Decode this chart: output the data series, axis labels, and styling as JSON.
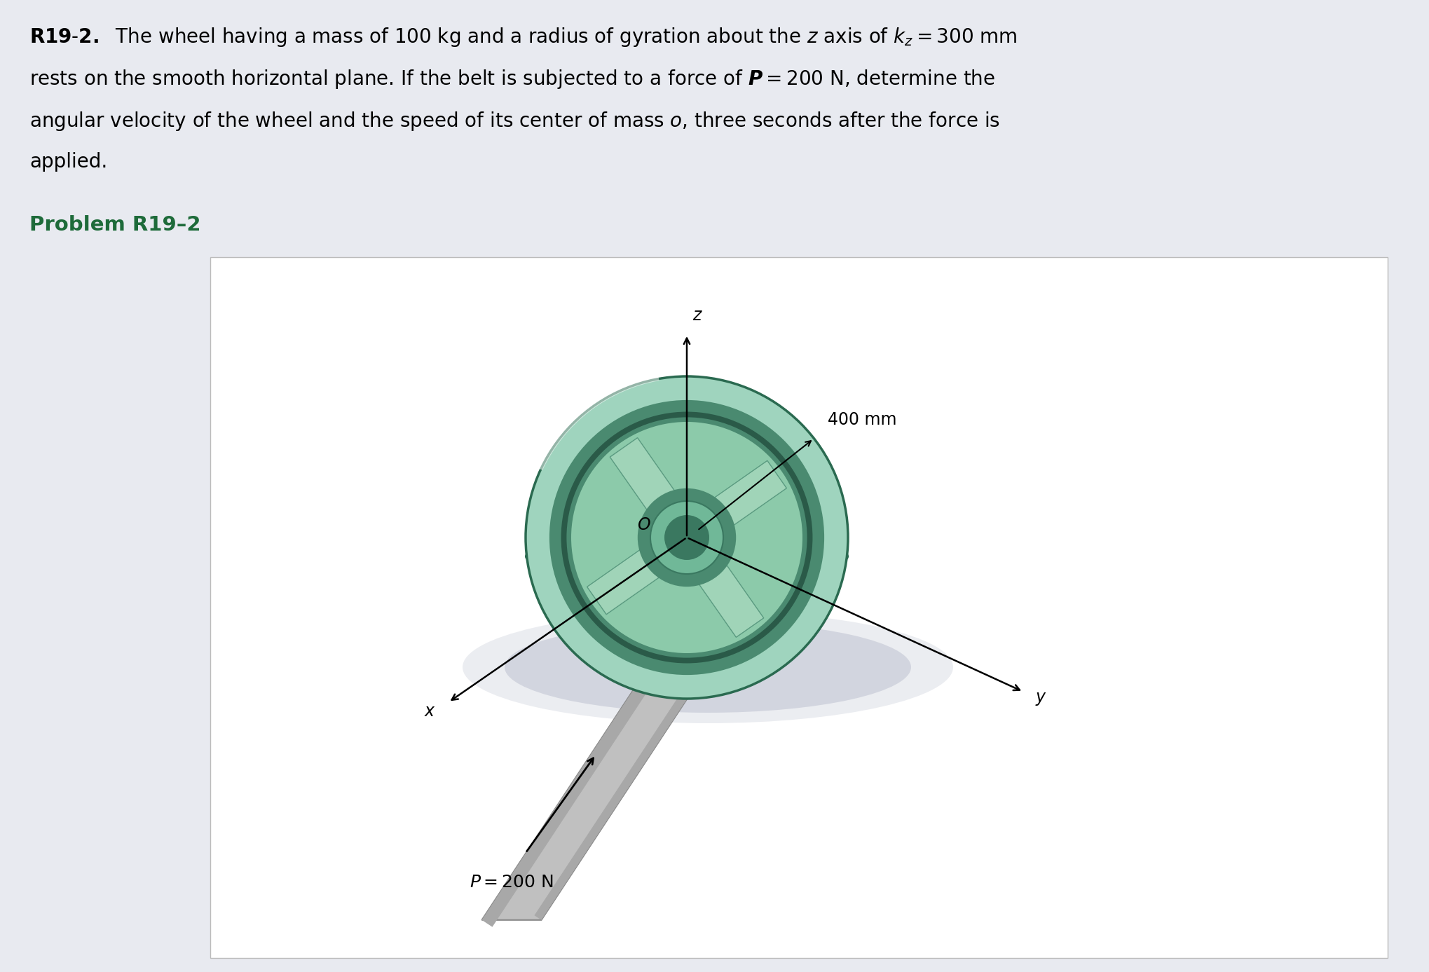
{
  "fig_bg": "#e8eaf0",
  "panel_bg": "#e8eaf0",
  "diagram_bg": "#ffffff",
  "text_color": "#000000",
  "subtitle_color": "#1e6b3a",
  "wheel_rim_outer": "#7dbfaa",
  "wheel_rim_light": "#9fd4be",
  "wheel_rim_dark": "#4a8a70",
  "wheel_rim_edge": "#2a6a50",
  "wheel_face_bg": "#8ccaaa",
  "wheel_spoke_light": "#a0d4b8",
  "wheel_spoke_dark": "#5a9a80",
  "wheel_hub_light": "#70b898",
  "wheel_hub_dark": "#3a7860",
  "wheel_side_color": "#3a7860",
  "wheel_groove": "#2a5a48",
  "belt_light": "#c0c0c0",
  "belt_mid": "#a8a8a8",
  "belt_dark": "#888888",
  "shadow_color": "#c8ccd8",
  "arrow_color": "#000000",
  "line1": "R19–2.  The wheel having a mass of 100 kg and a radius of gyration about the $z$ axis of $k_z = 300$ mm",
  "line2": "rests on the smooth horizontal plane. If the belt is subjected to a force of $\\boldsymbol{P} = 200$ N, determine the",
  "line3": "angular velocity of the wheel and the speed of its center of mass $o$, three seconds after the force is",
  "line4": "applied.",
  "subtitle": "Problem R19–2",
  "label_400mm": "400 mm",
  "label_P": "$P = 200$ N",
  "label_x": "x",
  "label_y": "y",
  "label_z": "z",
  "label_O": "O",
  "fs_body": 20,
  "fs_sub": 21,
  "fs_diagram": 17
}
